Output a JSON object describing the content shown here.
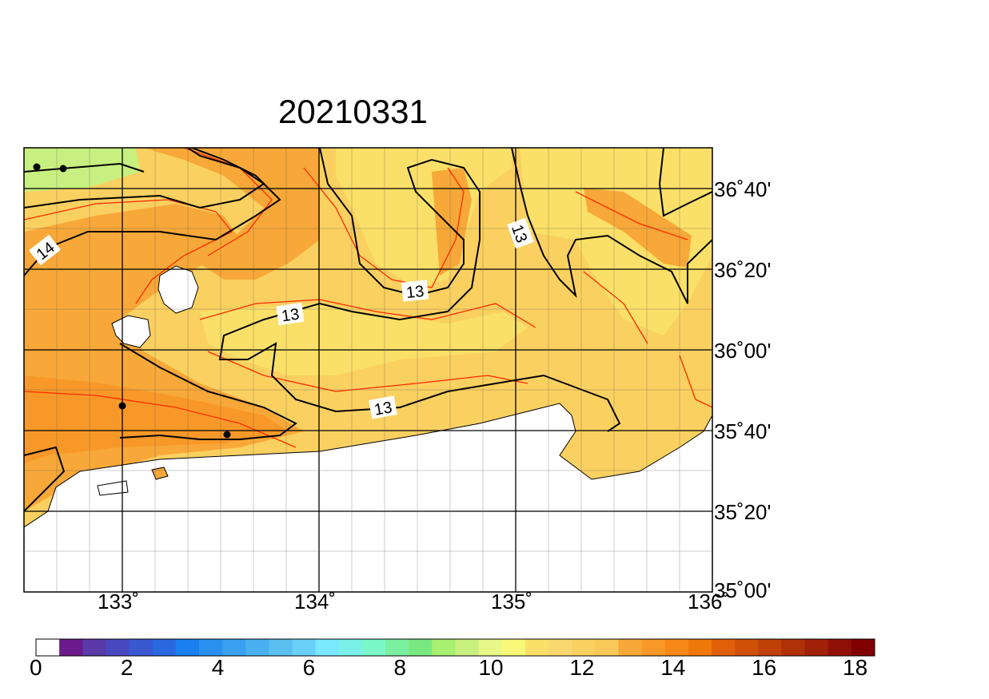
{
  "title": "20210331",
  "lat_labels": [
    "36˚40'",
    "36˚20'",
    "36˚00'",
    "35˚40'",
    "35˚20'",
    "35˚00'"
  ],
  "lon_labels": [
    "133˚",
    "134˚",
    "135˚",
    "136˚"
  ],
  "contour_labels": [
    "14",
    "13",
    "13",
    "13",
    "13"
  ],
  "colorbar": {
    "ticks": [
      "0",
      "2",
      "4",
      "6",
      "8",
      "10",
      "12",
      "14",
      "16",
      "18"
    ],
    "colors": [
      "#ffffff",
      "#6a1a8a",
      "#5a3aa8",
      "#4848c0",
      "#3a58d0",
      "#2a68e0",
      "#1a80f0",
      "#2a90f0",
      "#3aa0f0",
      "#4ab0f0",
      "#5ac0f0",
      "#6ad0f8",
      "#7ae8ff",
      "#7af0e8",
      "#7af8c8",
      "#7af0a0",
      "#7ae880",
      "#a8f070",
      "#c8f080",
      "#e8f888",
      "#f8f878",
      "#fae068",
      "#fad870",
      "#fad060",
      "#f8c858",
      "#f8a838",
      "#f89828",
      "#f88818",
      "#f07808",
      "#e06008",
      "#d05008",
      "#c04008",
      "#b03008",
      "#a02008",
      "#901008",
      "#800000"
    ]
  },
  "colors": {
    "sea_warm": "#f8a838",
    "sea_mid": "#fad060",
    "sea_cool": "#fae068",
    "sea_cold": "#c8f080",
    "land": "#ffffff",
    "contour_black": "#000000",
    "contour_red": "#ff2a00"
  }
}
